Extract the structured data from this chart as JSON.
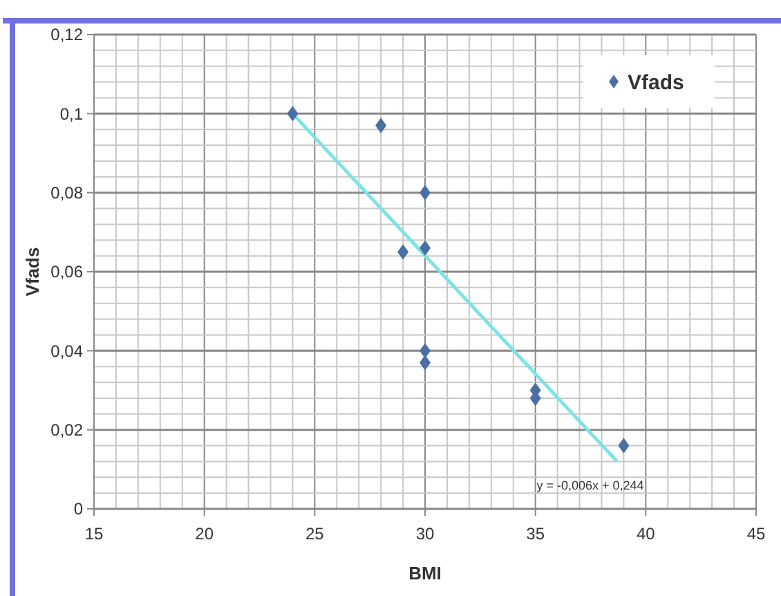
{
  "chart_data": {
    "type": "scatter",
    "xlabel": "BMI",
    "ylabel": "Vfads",
    "xlim": [
      15,
      45
    ],
    "xticks": [
      15,
      {
        "value": 16,
        "label": null
      },
      {
        "value": 17,
        "label": null
      },
      {
        "value": 18,
        "label": null
      },
      {
        "value": 19,
        "label": null
      },
      20,
      {
        "value": 21,
        "label": null
      },
      {
        "value": 22,
        "label": null
      },
      {
        "value": 23,
        "label": null
      },
      {
        "value": 24,
        "label": null
      },
      25,
      {
        "value": 26,
        "label": null
      },
      {
        "value": 27,
        "label": null
      },
      {
        "value": 28,
        "label": null
      },
      {
        "value": 29,
        "label": null
      },
      30,
      {
        "value": 31,
        "label": null
      },
      {
        "value": 32,
        "label": null
      },
      {
        "value": 33,
        "label": null
      },
      {
        "value": 34,
        "label": null
      },
      35,
      {
        "value": 36,
        "label": null
      },
      {
        "value": 37,
        "label": null
      },
      {
        "value": 38,
        "label": null
      },
      {
        "value": 39,
        "label": null
      },
      40,
      {
        "value": 41,
        "label": null
      },
      {
        "value": 42,
        "label": null
      },
      {
        "value": 43,
        "label": null
      },
      {
        "value": 44,
        "label": null
      },
      45
    ],
    "ylim": [
      0,
      0.12
    ],
    "yticks": [
      0,
      {
        "value": 0.004,
        "label": null
      },
      {
        "value": 0.008,
        "label": null
      },
      {
        "value": 0.012,
        "label": null
      },
      {
        "value": 0.016,
        "label": null
      },
      {
        "value": 0.02,
        "label": "0,02"
      },
      {
        "value": 0.024,
        "label": null
      },
      {
        "value": 0.028,
        "label": null
      },
      {
        "value": 0.032,
        "label": null
      },
      {
        "value": 0.036,
        "label": null
      },
      {
        "value": 0.04,
        "label": "0,04"
      },
      {
        "value": 0.044,
        "label": null
      },
      {
        "value": 0.048,
        "label": null
      },
      {
        "value": 0.052,
        "label": null
      },
      {
        "value": 0.056,
        "label": null
      },
      {
        "value": 0.06,
        "label": "0,06"
      },
      {
        "value": 0.064,
        "label": null
      },
      {
        "value": 0.068,
        "label": null
      },
      {
        "value": 0.072,
        "label": null
      },
      {
        "value": 0.076,
        "label": null
      },
      {
        "value": 0.08,
        "label": "0,08"
      },
      {
        "value": 0.084,
        "label": null
      },
      {
        "value": 0.088,
        "label": null
      },
      {
        "value": 0.092,
        "label": null
      },
      {
        "value": 0.096,
        "label": null
      },
      {
        "value": 0.1,
        "label": "0,1"
      },
      {
        "value": 0.104,
        "label": null
      },
      {
        "value": 0.108,
        "label": null
      },
      {
        "value": 0.112,
        "label": null
      },
      {
        "value": 0.116,
        "label": null
      },
      {
        "value": 0.12,
        "label": "0,12"
      }
    ],
    "grid": true,
    "legend": "top right",
    "marker": "diamond",
    "series": [
      {
        "name": "Vfads",
        "color": "#4a6fa5",
        "x": [
          24,
          28,
          29,
          30,
          30,
          30,
          30,
          35,
          35,
          39
        ],
        "values": [
          0.1,
          0.097,
          0.065,
          0.08,
          0.066,
          0.04,
          0.037,
          0.03,
          0.028,
          0.016
        ]
      },
      {
        "type": "line",
        "color": "#7fe3e3",
        "marker": "none",
        "x": [
          24,
          38.7
        ],
        "values": [
          0.1,
          0.012
        ]
      }
    ],
    "annotations": [
      "y = -0,006x + 0,244"
    ]
  }
}
